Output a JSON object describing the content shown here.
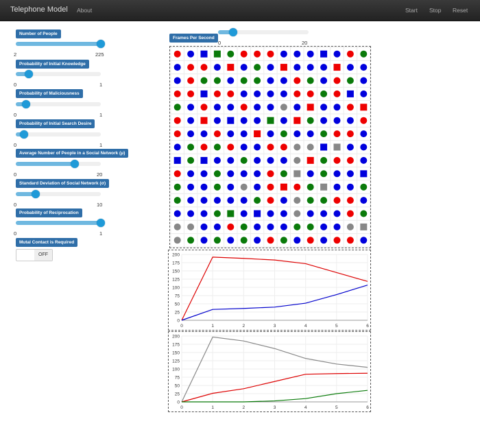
{
  "navbar": {
    "brand": "Telephone Model",
    "about": "About",
    "start": "Start",
    "stop": "Stop",
    "reset": "Reset"
  },
  "sliders": [
    {
      "label": "Number of People",
      "min": "2",
      "max": "225",
      "fraction": 1.0
    },
    {
      "label": "Probability of Initial Knowledge",
      "min": "0",
      "max": "1",
      "fraction": 0.15
    },
    {
      "label": "Probability of Maliciousness",
      "min": "0",
      "max": "1",
      "fraction": 0.12
    },
    {
      "label": "Probability of Initial Search Desire",
      "min": "0",
      "max": "1",
      "fraction": 0.1
    },
    {
      "label": "Average Number of People in a Social Network (μ)",
      "min": "0",
      "max": "20",
      "fraction": 0.69
    },
    {
      "label": "Standard Deviation of Social Network (σ)",
      "min": "0",
      "max": "10",
      "fraction": 0.23
    },
    {
      "label": "Probability of Reciprocation",
      "min": "0",
      "max": "1",
      "fraction": 1.0
    }
  ],
  "fps": {
    "label": "Frames Per Second",
    "min": "0",
    "max": "20",
    "fraction": 0.17
  },
  "mutual": {
    "label": "Mutal Contact is Required",
    "state": "OFF"
  },
  "colors": {
    "red": "#ee0000",
    "blue": "#0000dd",
    "green": "#0a7a0a",
    "gray": "#888888"
  },
  "grid": [
    "rbBGgrrrbbbBbrg",
    "brrbRbgbRbbbRbb",
    "brggbggbbrgbrgb",
    "rrBrrbbbbrrgrBb",
    "gbrbbrbbabRbbrR",
    "rbRbBbbGbRgbbbr",
    "rbbrbbRbgbbgrrb",
    "bgrgrbbrraaBAbb",
    "BgBbbgbbbaRgrrb",
    "rbbgbbbrgAbgbbB",
    "gbbgbabrRrgAbbg",
    "gbbbbbgrbaggrrb",
    "bbbgGbBbbabbbrg",
    "aabbrgbbbggbbaA",
    "agbgbgbrgbrbrrb"
  ],
  "chart_data": [
    {
      "type": "line",
      "x": [
        0,
        1,
        2,
        3,
        4,
        5,
        6
      ],
      "ylim": [
        0,
        200
      ],
      "yticks": [
        "0",
        "25",
        "50",
        "75",
        "100",
        "125",
        "150",
        "175",
        "200"
      ],
      "xticks": [
        "0",
        "1",
        "2",
        "3",
        "4",
        "5",
        "6"
      ],
      "series": [
        {
          "color": "#dd0000",
          "values": [
            0,
            192,
            188,
            183,
            172,
            145,
            118
          ]
        },
        {
          "color": "#0000cc",
          "values": [
            0,
            33,
            36,
            40,
            52,
            78,
            107
          ]
        }
      ]
    },
    {
      "type": "line",
      "x": [
        0,
        1,
        2,
        3,
        4,
        5,
        6
      ],
      "ylim": [
        0,
        200
      ],
      "yticks": [
        "0",
        "25",
        "50",
        "75",
        "100",
        "125",
        "150",
        "175",
        "200"
      ],
      "xticks": [
        "0",
        "1",
        "2",
        "3",
        "4",
        "5",
        "6"
      ],
      "series": [
        {
          "color": "#888888",
          "values": [
            0,
            197,
            185,
            162,
            132,
            115,
            105
          ]
        },
        {
          "color": "#dd0000",
          "values": [
            0,
            26,
            40,
            62,
            84,
            86,
            87
          ]
        },
        {
          "color": "#087a08",
          "values": [
            0,
            0,
            0,
            3,
            10,
            25,
            35
          ]
        }
      ]
    }
  ]
}
